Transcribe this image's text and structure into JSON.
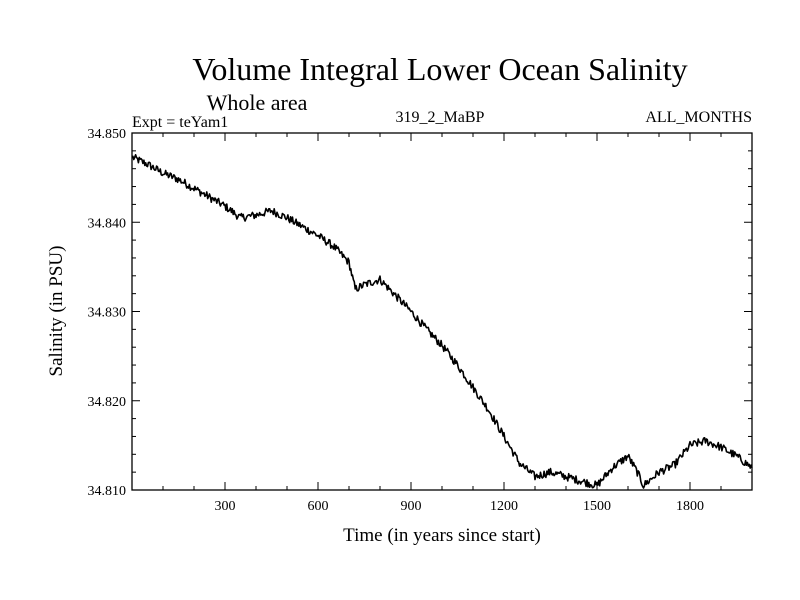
{
  "chart_data": {
    "type": "line",
    "title": "Volume Integral Lower Ocean Salinity",
    "subtitle": "Whole area",
    "expt_label": "Expt = teYam1",
    "run_label": "319_2_MaBP",
    "months_label": "ALL_MONTHS",
    "xlabel": "Time (in years since start)",
    "ylabel": "Salinity (in PSU)",
    "xlim": [
      0,
      2000
    ],
    "ylim": [
      34.81,
      34.85
    ],
    "xticks": [
      300,
      600,
      900,
      1200,
      1500,
      1800
    ],
    "xtick_labels": [
      "300",
      "600",
      "900",
      "1200",
      "1500",
      "1800"
    ],
    "yticks": [
      34.81,
      34.82,
      34.83,
      34.84,
      34.85
    ],
    "ytick_labels": [
      "34.810",
      "34.820",
      "34.830",
      "34.840",
      "34.850"
    ],
    "series": [
      {
        "name": "salinity",
        "x": [
          0,
          50,
          100,
          150,
          200,
          250,
          300,
          350,
          400,
          450,
          500,
          550,
          600,
          650,
          700,
          720,
          750,
          800,
          850,
          900,
          950,
          1000,
          1050,
          1100,
          1150,
          1200,
          1250,
          1300,
          1350,
          1400,
          1450,
          1500,
          1550,
          1600,
          1630,
          1650,
          1700,
          1750,
          1800,
          1850,
          1900,
          1950,
          2000
        ],
        "y": [
          34.8473,
          34.8465,
          34.8455,
          34.8448,
          34.8438,
          34.8428,
          34.8418,
          34.8405,
          34.8408,
          34.8413,
          34.8405,
          34.8395,
          34.8385,
          34.8373,
          34.8355,
          34.8325,
          34.833,
          34.8336,
          34.8318,
          34.83,
          34.828,
          34.8262,
          34.824,
          34.8215,
          34.819,
          34.816,
          34.813,
          34.8115,
          34.812,
          34.8115,
          34.811,
          34.8105,
          34.8125,
          34.8138,
          34.812,
          34.8105,
          34.812,
          34.8128,
          34.815,
          34.8155,
          34.8148,
          34.8138,
          34.8125
        ]
      }
    ]
  }
}
